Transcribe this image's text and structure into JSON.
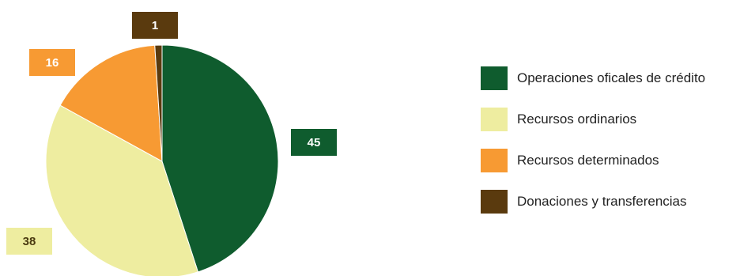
{
  "chart_data": {
    "type": "pie",
    "categories": [
      "Operaciones oficales de crédito",
      "Recursos ordinarios",
      "Recursos determinados",
      "Donaciones y transferencias"
    ],
    "values": [
      45,
      38,
      16,
      1
    ],
    "data_labels": [
      "45",
      "38",
      "16",
      "1"
    ],
    "colors": [
      "#0f5c2e",
      "#eeeda0",
      "#f79a33",
      "#5a3a0e"
    ],
    "label_text_colors": [
      "#ffffff",
      "#4a3a10",
      "#ffffff",
      "#ffffff"
    ],
    "start": "12 o'clock",
    "direction": "clockwise",
    "legend_position": "right"
  }
}
